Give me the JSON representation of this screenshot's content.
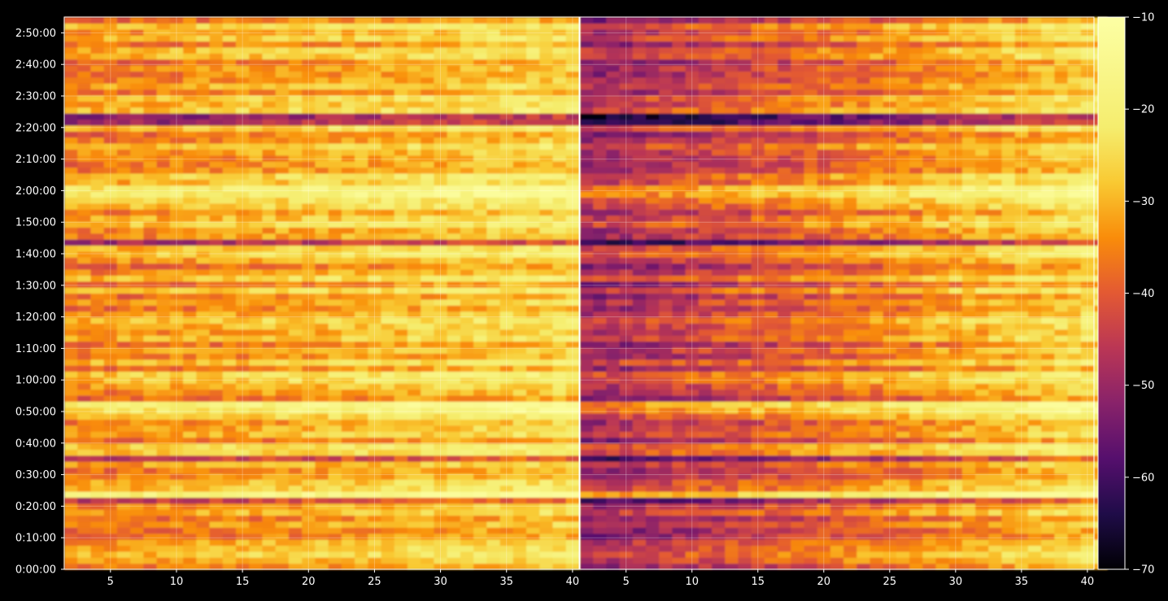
{
  "chart_data": {
    "type": "heatmap",
    "title": "",
    "colormap": "inferno",
    "background": "#000000",
    "grid": true,
    "panels": [
      {
        "xlabel": "",
        "xlim": [
          1,
          40
        ],
        "xticks": [
          5,
          10,
          15,
          20,
          25,
          30,
          35,
          40
        ],
        "x_tick_labels": [
          "5",
          "10",
          "15",
          "20",
          "25",
          "30",
          "35",
          "40"
        ]
      },
      {
        "xlabel": "",
        "xlim": [
          1,
          40
        ],
        "xticks": [
          5,
          10,
          15,
          20,
          25,
          30,
          35,
          40
        ],
        "x_tick_labels": [
          "5",
          "10",
          "15",
          "20",
          "25",
          "30",
          "35",
          "40"
        ]
      }
    ],
    "y_axis": {
      "label": "",
      "unit": "time (h:mm:ss)",
      "ylim_seconds": [
        0,
        10500
      ],
      "ticks_seconds": [
        0,
        600,
        1200,
        1800,
        2400,
        3000,
        3600,
        4200,
        4800,
        5400,
        6000,
        6600,
        7200,
        7800,
        8400,
        9000,
        9600,
        10200
      ],
      "tick_labels": [
        "0:00:00",
        "0:10:00",
        "0:20:00",
        "0:30:00",
        "0:40:00",
        "0:50:00",
        "1:00:00",
        "1:10:00",
        "1:20:00",
        "1:30:00",
        "1:40:00",
        "1:50:00",
        "2:00:00",
        "2:10:00",
        "2:20:00",
        "2:30:00",
        "2:40:00",
        "2:50:00"
      ]
    },
    "colorbar": {
      "min": -70,
      "max": -10,
      "ticks": [
        -70,
        -60,
        -50,
        -40,
        -30,
        -20,
        -10
      ],
      "tick_labels": [
        "−70",
        "−60",
        "−50",
        "−40",
        "−30",
        "−20",
        "−10"
      ]
    },
    "approximate_levels": {
      "panel_1_typical_range": [
        -45,
        -25
      ],
      "panel_2_typical_range": [
        -62,
        -25
      ],
      "panel_1_brightest_value": -14,
      "dark_bands_at_seconds": [
        1285,
        2090,
        6240,
        8560
      ],
      "bright_bands_at_seconds": [
        1400,
        3090,
        7190
      ]
    }
  }
}
